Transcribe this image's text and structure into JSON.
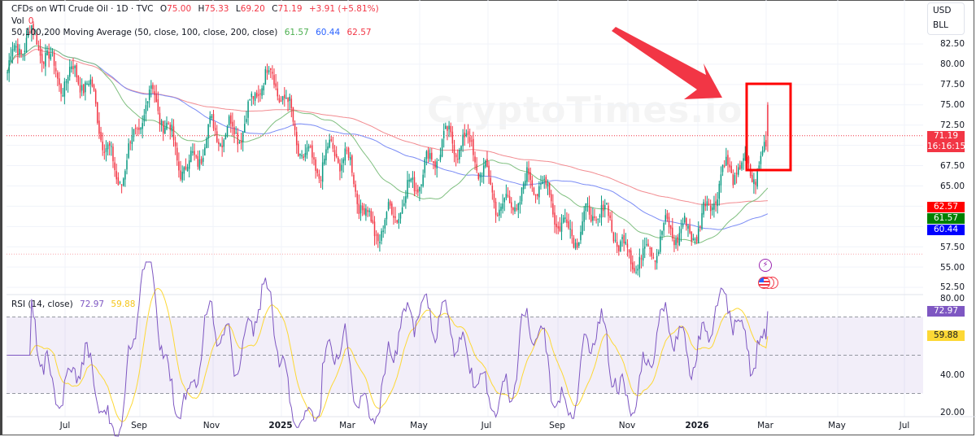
{
  "header": {
    "symbol": "CFDs on WTI Crude Oil · 1D · TVC",
    "open_label": "O",
    "open": "75.00",
    "high_label": "H",
    "high": "75.33",
    "low_label": "L",
    "low": "69.20",
    "close_label": "C",
    "close": "71.19",
    "change": "+3.91 (+5.81%)",
    "vol_label": "Vol",
    "vol": "0",
    "ma_label": "50,100,200 Moving Average (50, close, 100, close, 200, close)",
    "ma50": "61.57",
    "ma100": "60.44",
    "ma200": "62.57"
  },
  "rsi_legend": {
    "label": "RSI (14, close)",
    "rsi": "72.97",
    "rsi_ma": "59.88"
  },
  "currency": {
    "line1": "USD",
    "line2": "BLL"
  },
  "watermark": "CryptoTimes.io",
  "price_axis": [
    "82.50",
    "80.00",
    "77.50",
    "75.00",
    "72.50",
    "67.50",
    "65.00",
    "57.50",
    "55.00",
    "52.50"
  ],
  "rsi_axis": [
    "80.00",
    "40.00",
    "20.00"
  ],
  "tags": {
    "last_price": "71.19",
    "countdown": "16:16:15",
    "ma200": "62.57",
    "ma50": "61.57",
    "ma100": "60.44",
    "rsi": "72.97",
    "rsi_ma": "59.88"
  },
  "time_axis": [
    "Jul",
    "Sep",
    "Nov",
    "2025",
    "Mar",
    "May",
    "Jul",
    "Sep",
    "Nov",
    "2026",
    "Mar",
    "May",
    "Jul"
  ],
  "colors": {
    "up": "#089981",
    "down": "#f23645",
    "ma50": "#4caf50",
    "ma100": "#2962ff",
    "ma200": "#f23645",
    "rsi": "#7e57c2",
    "rsi_ma": "#fdd835",
    "annotation": "#f23645"
  },
  "chart_data": [
    {
      "type": "candlestick",
      "title": "CFDs on WTI Crude Oil · 1D · TVC",
      "ylabel": "USD / BLL",
      "ylim": [
        51.5,
        85
      ],
      "x_ticks": [
        "Jul",
        "Sep",
        "Nov",
        "2025",
        "Mar",
        "May",
        "Jul",
        "Sep",
        "Nov",
        "2026",
        "Mar",
        "May",
        "Jul"
      ],
      "y_ticks": [
        52.5,
        55,
        57.5,
        60,
        62.5,
        65,
        67.5,
        70,
        72.5,
        75,
        77.5,
        80,
        82.5
      ],
      "last_bar": {
        "open": 75.0,
        "high": 75.33,
        "low": 69.2,
        "close": 71.19,
        "change": 3.91,
        "change_pct": 5.81
      },
      "approx_close_path": {
        "x": [
          "May-24",
          "Jul-24",
          "Aug-24",
          "Sep-24",
          "Oct-24",
          "Nov-24",
          "Dec-24",
          "Jan-25",
          "Feb-25",
          "Mar-25",
          "Apr-25",
          "May-25",
          "Jun-25",
          "Jul-25",
          "Aug-25",
          "Sep-25",
          "Oct-25",
          "Nov-25",
          "Dec-25",
          "Jan-26",
          "Feb-26",
          "Mar-26"
        ],
        "close": [
          79,
          83,
          77,
          68,
          74,
          69,
          70,
          79,
          71,
          68,
          62,
          61,
          73,
          66,
          64,
          63,
          60,
          59,
          56,
          62,
          65,
          71.19
        ]
      },
      "series": [
        {
          "name": "MA 50",
          "last": 61.57
        },
        {
          "name": "MA 100",
          "last": 60.44
        },
        {
          "name": "MA 200",
          "last": 62.57
        }
      ],
      "annotations": [
        "Red arrow pointing to highlighted latest candle",
        "Red box around spike candle near 75"
      ]
    },
    {
      "type": "line",
      "title": "RSI (14, close)",
      "ylim": [
        20,
        80
      ],
      "y_ticks": [
        20,
        40,
        80
      ],
      "bands": [
        30,
        50,
        70
      ],
      "series": [
        {
          "name": "RSI",
          "last": 72.97
        },
        {
          "name": "RSI MA",
          "last": 59.88
        }
      ]
    }
  ]
}
